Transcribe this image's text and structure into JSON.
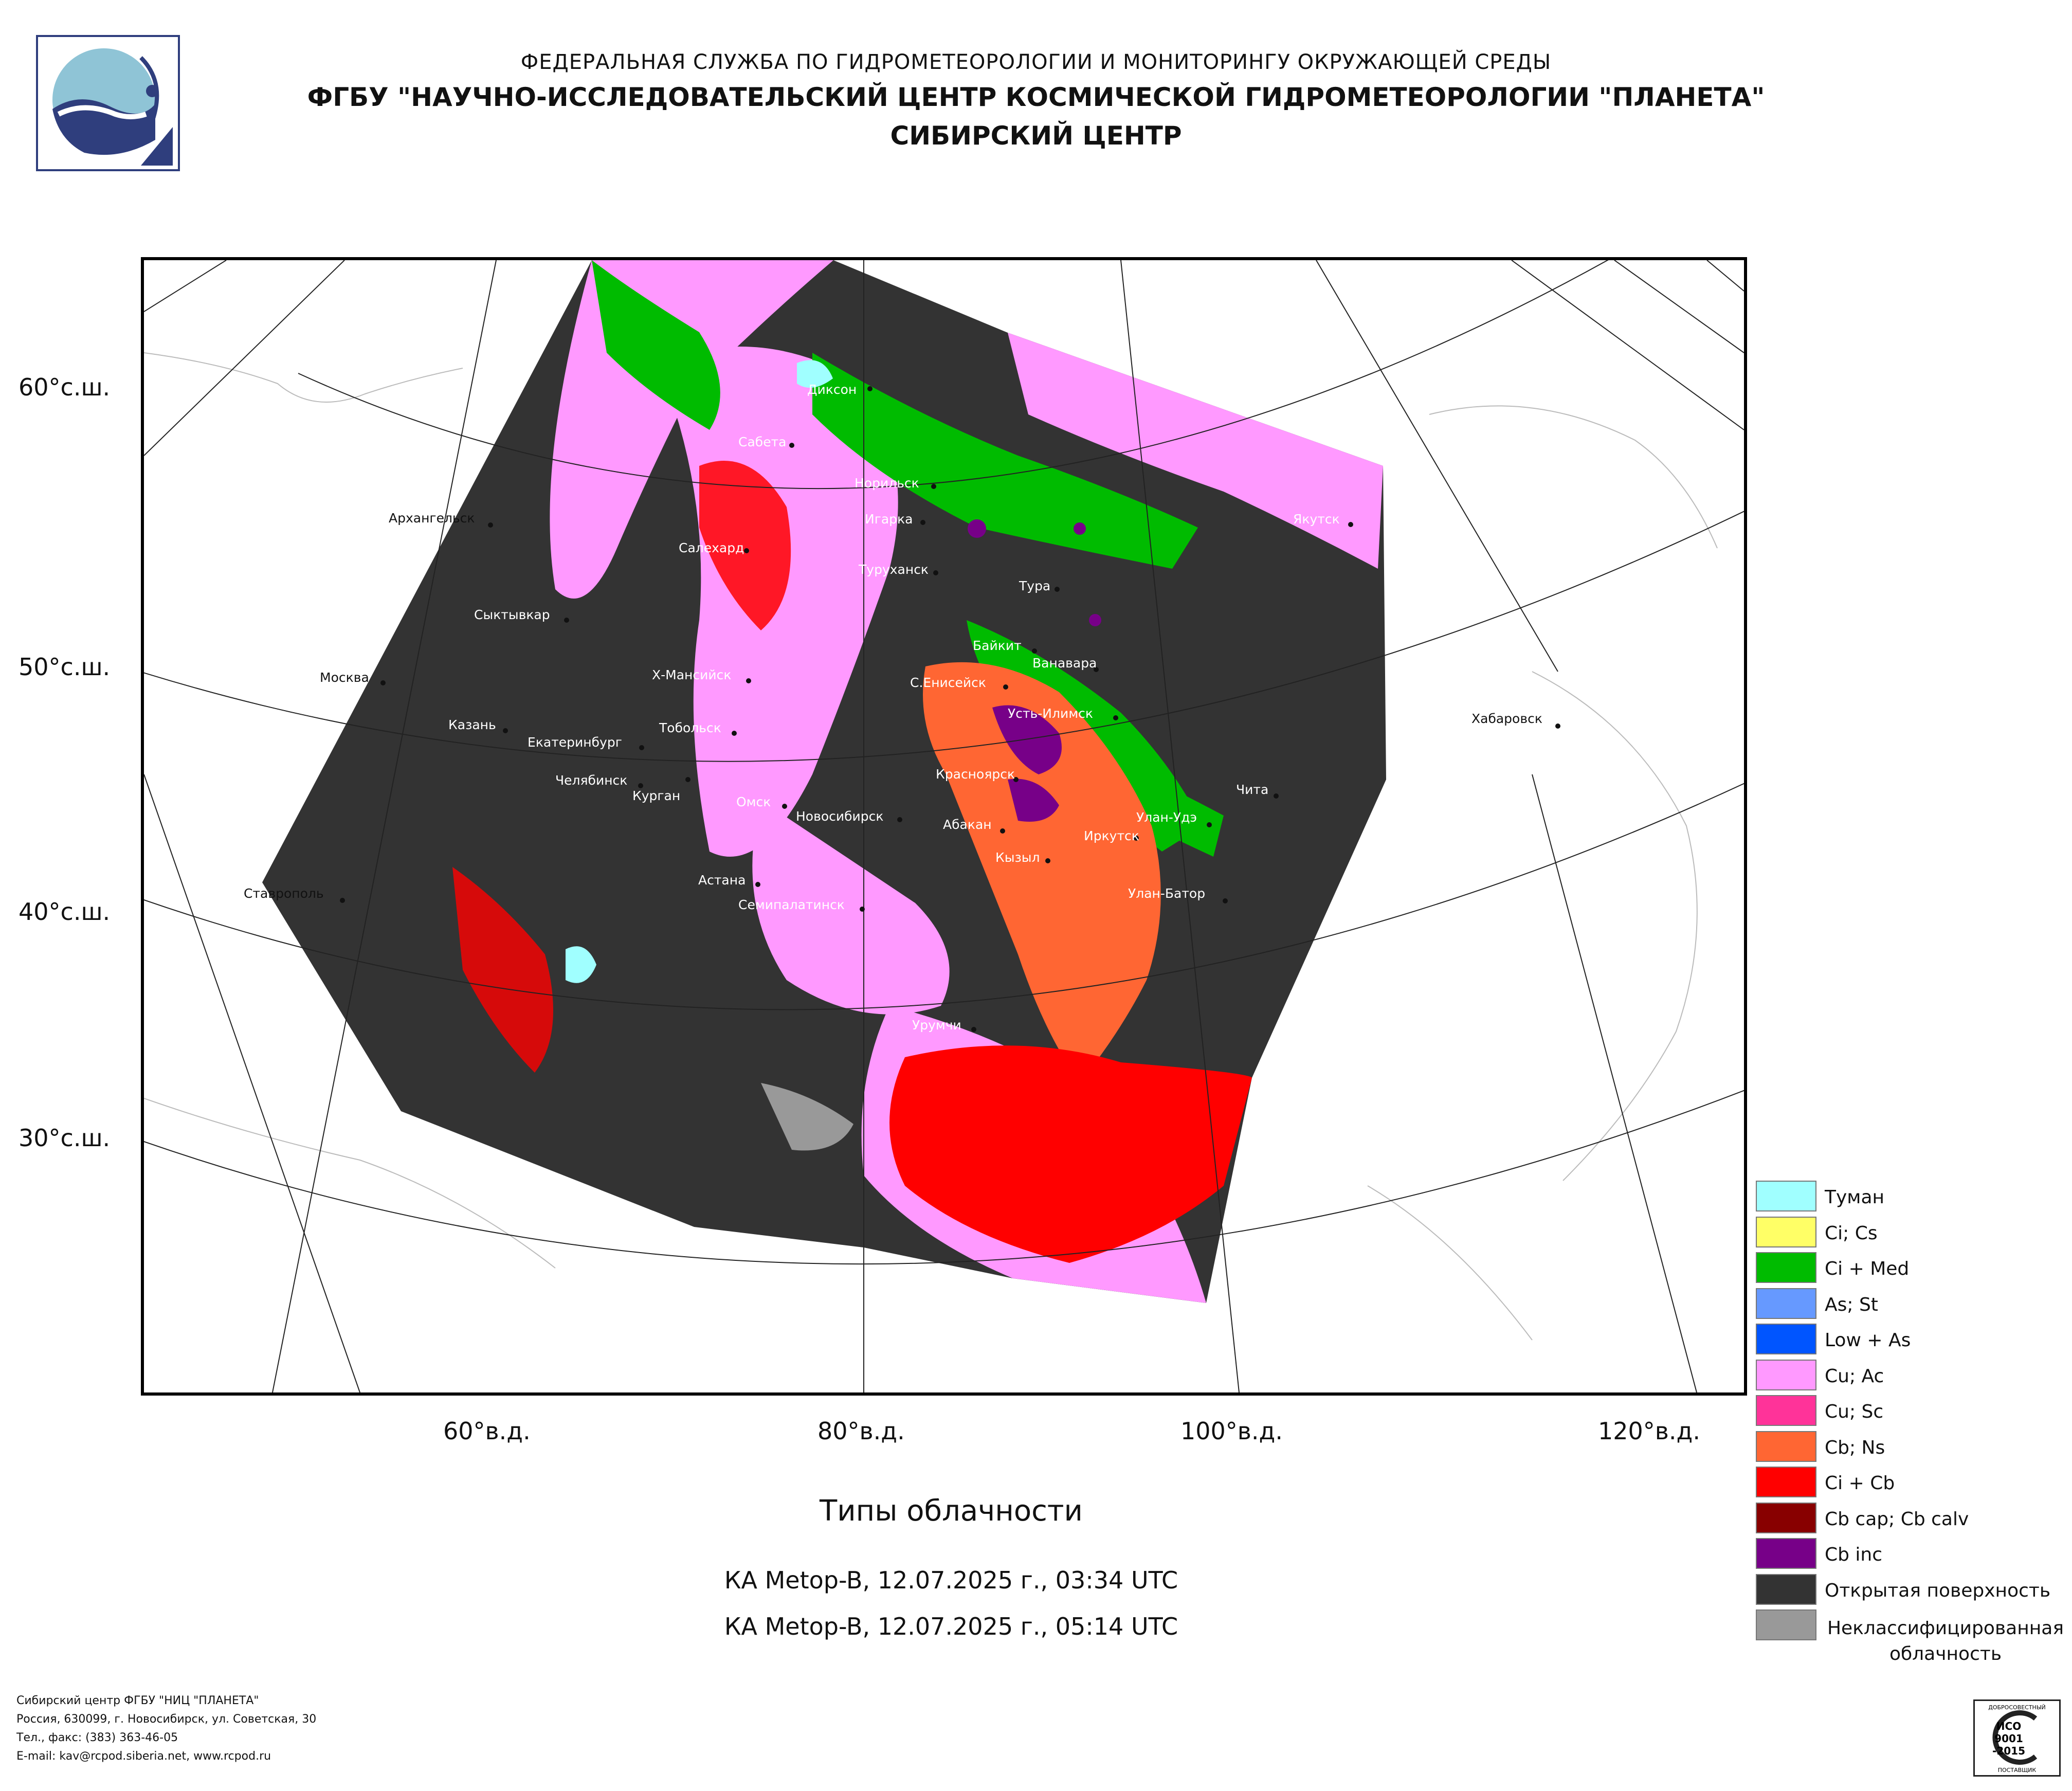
{
  "header": {
    "line1": "ФЕДЕРАЛЬНАЯ СЛУЖБА ПО ГИДРОМЕТЕОРОЛОГИИ И МОНИТОРИНГУ ОКРУЖАЮЩЕЙ СРЕДЫ",
    "line2": "ФГБУ \"НАУЧНО-ИССЛЕДОВАТЕЛЬСКИЙ ЦЕНТР КОСМИЧЕСКОЙ ГИДРОМЕТЕОРОЛОГИИ \"ПЛАНЕТА\"",
    "line3": "СИБИРСКИЙ ЦЕНТР"
  },
  "logo": {
    "icon": "planeta-logo-icon"
  },
  "map": {
    "lat_labels": [
      "60°с.ш.",
      "50°с.ш.",
      "40°с.ш.",
      "30°с.ш."
    ],
    "lon_labels": [
      "60°в.д.",
      "80°в.д.",
      "100°в.д.",
      "120°в.д."
    ],
    "cities": {
      "dikson": "Диксон",
      "sabeta": "Сабета",
      "norilsk": "Норильск",
      "igarka": "Игарка",
      "salekhard": "Салехард",
      "turukhansk": "Туруханск",
      "tura": "Тура",
      "yakutsk": "Якутск",
      "arkhangelsk": "Архангельск",
      "syktyvkar": "Сыктывкар",
      "moscow": "Москва",
      "khmansiysk": "Х-Мансийск",
      "baikit": "Байкит",
      "vanavara": "Ванавара",
      "seniseisk": "С.Енисейск",
      "ustilimsk": "Усть-Илимск",
      "khabarovsk": "Хабаровск",
      "kazan": "Казань",
      "ekaterinburg": "Екатеринбург",
      "tobolsk": "Тобольск",
      "chelyabinsk": "Челябинск",
      "kurgan": "Курган",
      "omsk": "Омск",
      "krasnoyarsk": "Красноярск",
      "chita": "Чита",
      "novosibirsk": "Новосибирск",
      "abakan": "Абакан",
      "ulanude": "Улан-Удэ",
      "irkutsk": "Иркутск",
      "kyzyl": "Кызыл",
      "astana": "Астана",
      "stavropol": "Ставрополь",
      "semipalatinsk": "Семипалатинск",
      "ulanbator": "Улан-Батор",
      "urumqi": "Урумчи"
    }
  },
  "title": "Типы облачности",
  "passes": [
    "КА Metop-B, 12.07.2025 г., 03:34 UTC",
    "КА Metop-B, 12.07.2025 г., 05:14 UTC"
  ],
  "legend": [
    {
      "label": "Туман",
      "color": "#a0ffff"
    },
    {
      "label": "Ci; Cs",
      "color": "#ffff66"
    },
    {
      "label": "Ci + Med",
      "color": "#00bb00"
    },
    {
      "label": "As; St",
      "color": "#6699ff"
    },
    {
      "label": "Low + As",
      "color": "#0055ff"
    },
    {
      "label": "Cu; Ac",
      "color": "#ff99ff"
    },
    {
      "label": "Cu; Sc",
      "color": "#ff3399"
    },
    {
      "label": "Cb; Ns",
      "color": "#ff6633"
    },
    {
      "label": "Ci + Cb",
      "color": "#ff0000"
    },
    {
      "label": "Cb cap; Cb calv",
      "color": "#880000"
    },
    {
      "label": "Cb inc",
      "color": "#770088"
    },
    {
      "label": "Открытая поверхность",
      "color": "#333333"
    },
    {
      "label": "Неклассифицированная облачность",
      "color": "#999999"
    }
  ],
  "footer": {
    "line1": "Сибирский центр ФГБУ \"НИЦ \"ПЛАНЕТА\"",
    "line2": "Россия, 630099, г. Новосибирск, ул. Советская, 30",
    "line3": "Тел., факс: (383) 363-46-05",
    "line4": "E-mail: kav@rcpod.siberia.net, www.rcpod.ru"
  },
  "iso_badge": {
    "top": "ДОБРОСОВЕСТНЫЙ",
    "line1": "ИСО",
    "line2": "9001",
    "line3": "-2015",
    "bottom": "ПОСТАВЩИК"
  }
}
